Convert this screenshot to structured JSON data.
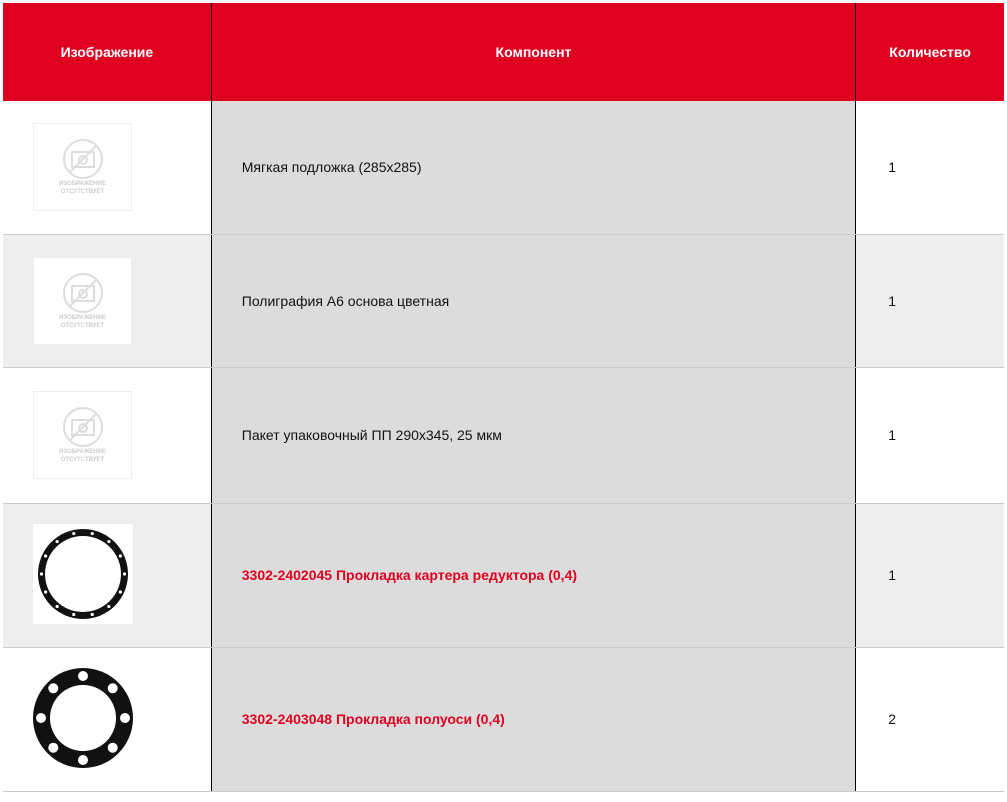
{
  "header": {
    "image": "Изображение",
    "component": "Компонент",
    "quantity": "Количество"
  },
  "placeholder_text": [
    "ИЗОБРАЖЕНИЕ",
    "ОТСУТСТВУЕТ"
  ],
  "rows": [
    {
      "image": "no-image-placeholder",
      "component": "Мягкая подложка (285x285)",
      "link": false,
      "quantity": "1"
    },
    {
      "image": "no-image-placeholder",
      "component": "Полиграфия А6 основа цветная",
      "link": false,
      "quantity": "1"
    },
    {
      "image": "no-image-placeholder",
      "component": "Пакет упаковочный ПП 290x345, 25 мкм",
      "link": false,
      "quantity": "1"
    },
    {
      "image": "gasket-thin-ring",
      "component": "3302-2402045 Прокладка картера редуктора (0,4)",
      "link": true,
      "quantity": "1"
    },
    {
      "image": "gasket-wide-ring",
      "component": "3302-2403048 Прокладка полуоси (0,4)",
      "link": true,
      "quantity": "2"
    }
  ],
  "colors": {
    "accent": "#e0001f",
    "component_bg": "#dcdcdc",
    "alt_row_bg": "#eeeeee"
  }
}
